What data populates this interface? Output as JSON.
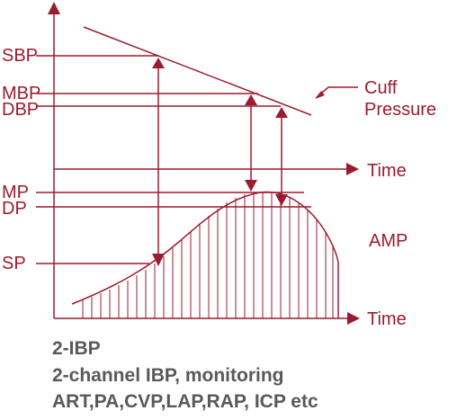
{
  "colors": {
    "line": "#9b1c2e",
    "caption": "#595959"
  },
  "labels": {
    "sbp": "SBP",
    "mbp": "MBP",
    "dbp": "DBP",
    "mp": "MP",
    "dp": "DP",
    "sp": "SP",
    "cuff_line1": "Cuff",
    "cuff_line2": "Pressure",
    "time_upper": "Time",
    "time_lower": "Time",
    "amp": "AMP"
  },
  "caption": {
    "line1": "2-IBP",
    "line2": "2-channel IBP, monitoring",
    "line3": "ART,PA,CVP,LAP,RAP, ICP etc"
  }
}
